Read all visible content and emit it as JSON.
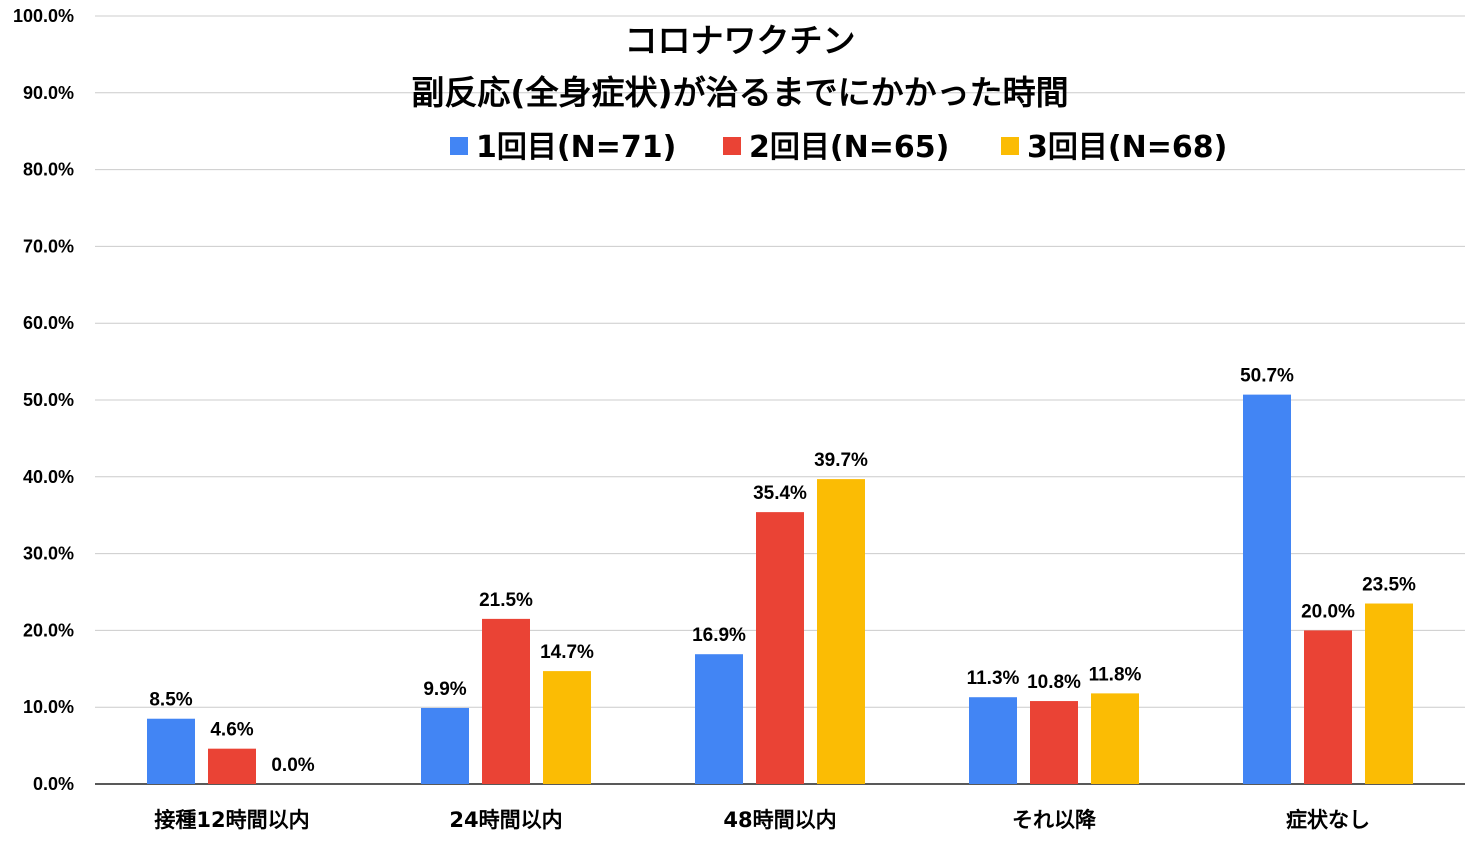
{
  "chart_data": {
    "type": "bar",
    "title": [
      "コロナワクチン",
      "副反応(全身症状)が治るまでにかかった時間"
    ],
    "categories": [
      "接種12時間以内",
      "24時間以内",
      "48時間以内",
      "それ以降",
      "症状なし"
    ],
    "series": [
      {
        "name": "1回目(N=71)",
        "color": "#4285f4",
        "values": [
          8.5,
          9.9,
          16.9,
          11.3,
          50.7
        ]
      },
      {
        "name": "2回目(N=65)",
        "color": "#ea4335",
        "values": [
          4.6,
          21.5,
          35.4,
          10.8,
          20.0
        ]
      },
      {
        "name": "3回目(N=68)",
        "color": "#fbbc04",
        "values": [
          0.0,
          14.7,
          39.7,
          11.8,
          23.5
        ]
      }
    ],
    "data_labels": [
      [
        "8.5%",
        "9.9%",
        "16.9%",
        "11.3%",
        "50.7%"
      ],
      [
        "4.6%",
        "21.5%",
        "35.4%",
        "10.8%",
        "20.0%"
      ],
      [
        "0.0%",
        "14.7%",
        "39.7%",
        "11.8%",
        "23.5%"
      ]
    ],
    "y_ticks": [
      "0.0%",
      "10.0%",
      "20.0%",
      "30.0%",
      "40.0%",
      "50.0%",
      "60.0%",
      "70.0%",
      "80.0%",
      "90.0%",
      "100.0%"
    ],
    "ylim": [
      0,
      100
    ],
    "y_unit": "%",
    "grid": true,
    "legend_position": "top-center"
  }
}
